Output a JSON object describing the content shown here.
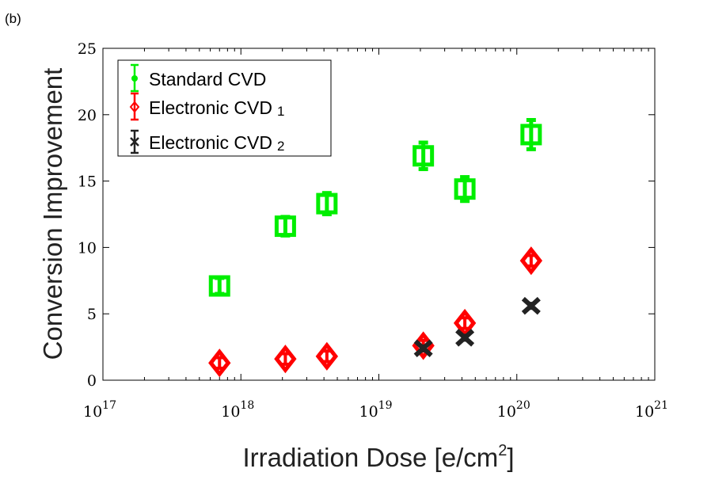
{
  "panel_label": "(b)",
  "chart_data": {
    "type": "scatter",
    "title": "",
    "xlabel": "Irradiation Dose [e/cm²]",
    "xlabel_parts": {
      "main": "Irradiation Dose [e/cm",
      "sup": "2",
      "end": "]"
    },
    "ylabel": "Conversion Improvement",
    "xscale": "log",
    "xlim": [
      1e+17,
      1e+21
    ],
    "ylim": [
      0,
      25
    ],
    "x_ticks": [
      {
        "base": "10",
        "exp": "17"
      },
      {
        "base": "10",
        "exp": "18"
      },
      {
        "base": "10",
        "exp": "19"
      },
      {
        "base": "10",
        "exp": "20"
      },
      {
        "base": "10",
        "exp": "21"
      }
    ],
    "y_ticks": [
      "0",
      "5",
      "10",
      "15",
      "20",
      "25"
    ],
    "grid": false,
    "legend_position": "top-left",
    "series": [
      {
        "name": "Standard CVD",
        "color": "#00ee00",
        "marker": "square-errorbar",
        "points": [
          {
            "x": 7e+17,
            "y": 7.1,
            "err": 0.6
          },
          {
            "x": 2.1e+18,
            "y": 11.6,
            "err": 0.7
          },
          {
            "x": 4.2e+18,
            "y": 13.3,
            "err": 0.8
          },
          {
            "x": 2.1e+19,
            "y": 16.9,
            "err": 1.0
          },
          {
            "x": 4.2e+19,
            "y": 14.4,
            "err": 0.9
          },
          {
            "x": 1.27e+20,
            "y": 18.5,
            "err": 1.1
          }
        ]
      },
      {
        "name": "Electronic CVD 1",
        "label_main": "Electronic CVD",
        "label_sub": "1",
        "color": "#ff0000",
        "marker": "diamond-errorbar",
        "points": [
          {
            "x": 7e+17,
            "y": 1.3,
            "err": 0.4
          },
          {
            "x": 2.1e+18,
            "y": 1.6,
            "err": 0.4
          },
          {
            "x": 4.2e+18,
            "y": 1.8,
            "err": 0.4
          },
          {
            "x": 2.1e+19,
            "y": 2.6,
            "err": 0.4
          },
          {
            "x": 4.2e+19,
            "y": 4.3,
            "err": 0.4
          },
          {
            "x": 1.27e+20,
            "y": 9.0,
            "err": 0.4
          }
        ]
      },
      {
        "name": "Electronic CVD 2",
        "label_main": "Electronic CVD",
        "label_sub": "2",
        "color": "#222222",
        "marker": "x-errorbar",
        "points": [
          {
            "x": 2.1e+19,
            "y": 2.4,
            "err": 0.3
          },
          {
            "x": 4.2e+19,
            "y": 3.2,
            "err": 0.3
          },
          {
            "x": 1.27e+20,
            "y": 5.6,
            "err": 0.3
          }
        ]
      }
    ]
  }
}
